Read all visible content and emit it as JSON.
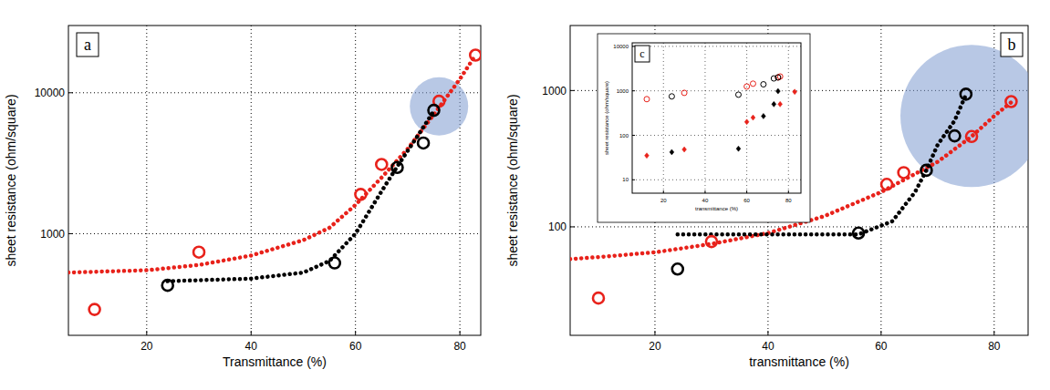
{
  "chart_data": [
    {
      "type": "scatter",
      "label": "a",
      "x_label": "Transmittance (%)",
      "y_label": "sheet resistance (ohm/square)",
      "xlim": [
        5,
        84
      ],
      "ylim": [
        190,
        30000
      ],
      "xticks": [
        20,
        40,
        60,
        80
      ],
      "yticks": [
        1000,
        10000
      ],
      "log": "y",
      "grid": true,
      "highlight": {
        "x": 76,
        "y": 8000
      },
      "series": [
        {
          "type": "line",
          "line_style": "dotted",
          "marker": "none",
          "color": "#e8221b",
          "x": [
            5,
            20,
            30,
            40,
            50,
            55,
            60,
            65,
            70,
            75,
            80,
            83
          ],
          "values": [
            530,
            550,
            600,
            700,
            900,
            1100,
            1600,
            2500,
            4000,
            7000,
            12500,
            18500
          ]
        },
        {
          "type": "line",
          "line_style": "dotted",
          "marker": "none",
          "color": "#000000",
          "x": [
            24,
            40,
            50,
            55,
            60,
            65,
            68,
            72,
            75
          ],
          "values": [
            460,
            480,
            530,
            640,
            1000,
            2000,
            3000,
            5000,
            7400
          ]
        },
        {
          "type": "scatter",
          "marker": "open_circle",
          "color": "#e8221b",
          "x": [
            10,
            30,
            61,
            65,
            76,
            83
          ],
          "values": [
            290,
            740,
            1900,
            3100,
            8700,
            18500
          ]
        },
        {
          "type": "scatter",
          "marker": "open_circle",
          "color": "#000000",
          "x": [
            24,
            56,
            68,
            73,
            75
          ],
          "values": [
            430,
            620,
            2950,
            4400,
            7500
          ]
        }
      ]
    },
    {
      "type": "scatter",
      "label": "b",
      "x_label": "transmittance (%)",
      "y_label": "sheet resistance (ohm/square)",
      "xlim": [
        5,
        86
      ],
      "ylim": [
        16,
        3000
      ],
      "xticks": [
        20,
        40,
        60,
        80
      ],
      "yticks": [
        100,
        1000
      ],
      "log": "y",
      "grid": true,
      "highlight": {
        "x": 76,
        "y": 650
      },
      "series": [
        {
          "type": "line",
          "line_style": "dotted",
          "marker": "none",
          "color": "#e8221b",
          "x": [
            5,
            10,
            20,
            30,
            40,
            50,
            60,
            70,
            76,
            80,
            83
          ],
          "values": [
            58,
            60,
            65,
            75,
            90,
            120,
            180,
            300,
            460,
            650,
            820
          ]
        },
        {
          "type": "line",
          "line_style": "dotted",
          "marker": "none",
          "color": "#000000",
          "x": [
            24,
            56,
            62,
            66,
            68,
            70,
            73,
            75
          ],
          "values": [
            88,
            88,
            110,
            180,
            260,
            400,
            600,
            930
          ]
        },
        {
          "type": "scatter",
          "marker": "open_circle",
          "color": "#e8221b",
          "x": [
            10,
            30,
            61,
            64,
            76,
            83
          ],
          "values": [
            30,
            78,
            205,
            250,
            460,
            830
          ]
        },
        {
          "type": "scatter",
          "marker": "open_circle",
          "color": "#000000",
          "x": [
            24,
            56,
            68,
            73,
            75
          ],
          "values": [
            49,
            90,
            260,
            465,
            940
          ]
        }
      ]
    },
    {
      "type": "scatter",
      "label": "c",
      "x_label": "transmittance (%)",
      "y_label": "sheet resistance (ohm/square)",
      "xlim": [
        5,
        86
      ],
      "ylim": [
        5,
        12000
      ],
      "xticks": [
        20,
        40,
        60,
        80
      ],
      "yticks": [
        10,
        100,
        1000,
        10000
      ],
      "log": "y",
      "grid": true,
      "series": [
        {
          "type": "scatter",
          "marker": "open_circle",
          "color": "#e8221b",
          "x": [
            12,
            30,
            60,
            63,
            75,
            76
          ],
          "values": [
            650,
            900,
            1250,
            1450,
            2000,
            2100
          ]
        },
        {
          "type": "scatter",
          "marker": "open_circle",
          "color": "#000000",
          "x": [
            24,
            56,
            68,
            73,
            75
          ],
          "values": [
            750,
            820,
            1400,
            1900,
            2000
          ]
        },
        {
          "type": "scatter",
          "marker": "diamond",
          "color": "#e8221b",
          "x": [
            12,
            30,
            60,
            63,
            76,
            83
          ],
          "values": [
            35,
            48,
            200,
            250,
            500,
            950
          ]
        },
        {
          "type": "scatter",
          "marker": "diamond",
          "color": "#000000",
          "x": [
            24,
            56,
            68,
            73,
            75
          ],
          "values": [
            42,
            50,
            270,
            500,
            980
          ]
        }
      ]
    }
  ]
}
